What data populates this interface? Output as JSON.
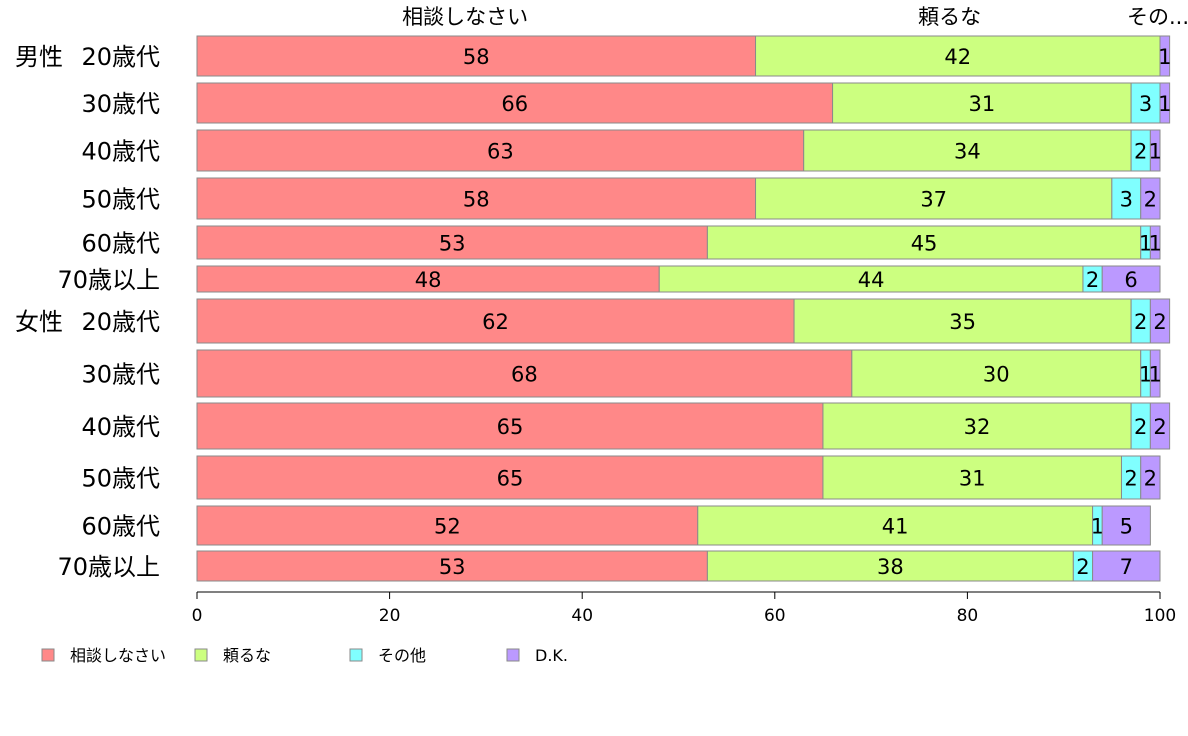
{
  "chart_data": {
    "type": "bar",
    "orientation": "horizontal",
    "stacked": true,
    "title": "",
    "xlabel": "",
    "ylabel": "",
    "xlim": [
      0,
      100
    ],
    "x_ticks": [
      "0",
      "20",
      "40",
      "60",
      "80",
      "100"
    ],
    "grid": false,
    "legend_position": "bottom",
    "group_labels": [
      "男性",
      "女性"
    ],
    "categories": [
      "20歳代",
      "30歳代",
      "40歳代",
      "50歳代",
      "60歳代",
      "70歳以上",
      "20歳代",
      "30歳代",
      "40歳代",
      "50歳代",
      "60歳代",
      "70歳以上"
    ],
    "top_labels": [
      "相談しなさい",
      "頼るな",
      "その..."
    ],
    "series": [
      {
        "name": "相談しなさい",
        "color": "#ff8888",
        "values": [
          58,
          66,
          63,
          58,
          53,
          48,
          62,
          68,
          65,
          65,
          52,
          53
        ]
      },
      {
        "name": "頼るな",
        "color": "#ccff80",
        "values": [
          42,
          31,
          34,
          37,
          45,
          44,
          35,
          30,
          32,
          31,
          41,
          38
        ]
      },
      {
        "name": "その他",
        "color": "#80ffff",
        "values": [
          0,
          3,
          2,
          3,
          1,
          2,
          2,
          1,
          2,
          2,
          1,
          2
        ]
      },
      {
        "name": "D.K.",
        "color": "#bb99ff",
        "values": [
          1,
          1,
          1,
          2,
          1,
          6,
          2,
          1,
          2,
          2,
          5,
          7
        ]
      }
    ],
    "data_labels": [
      [
        "58",
        "42",
        "",
        "1"
      ],
      [
        "66",
        "31",
        "3",
        "1"
      ],
      [
        "63",
        "34",
        "2",
        "1"
      ],
      [
        "58",
        "37",
        "3",
        "2"
      ],
      [
        "53",
        "45",
        "1",
        "1"
      ],
      [
        "48",
        "44",
        "2",
        "6"
      ],
      [
        "62",
        "35",
        "2",
        "2"
      ],
      [
        "68",
        "30",
        "1",
        "1"
      ],
      [
        "65",
        "32",
        "2",
        "2"
      ],
      [
        "65",
        "31",
        "2",
        "2"
      ],
      [
        "52",
        "41",
        "1",
        "5"
      ],
      [
        "53",
        "38",
        "2",
        "7"
      ]
    ]
  }
}
